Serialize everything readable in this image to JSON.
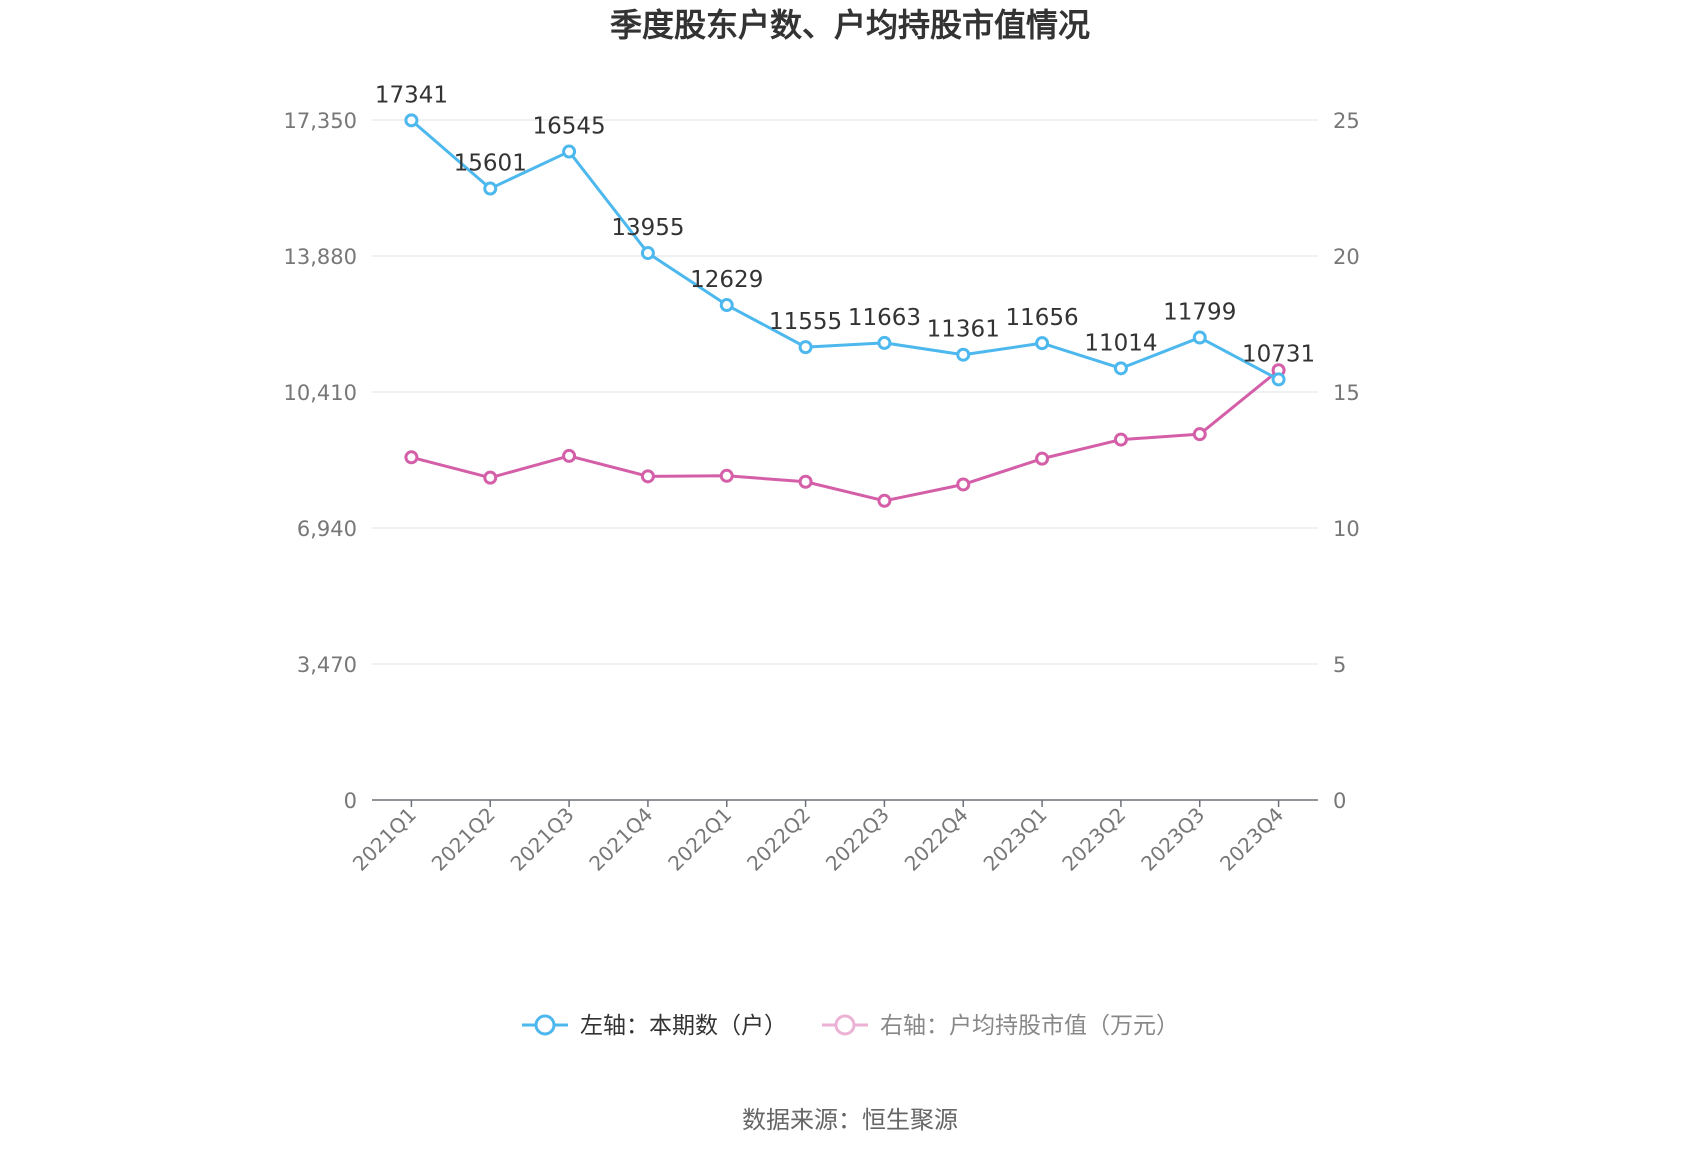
{
  "chart_data": {
    "type": "line",
    "title": "季度股东户数、户均持股市值情况",
    "categories": [
      "2021Q1",
      "2021Q2",
      "2021Q3",
      "2021Q4",
      "2022Q1",
      "2022Q2",
      "2022Q3",
      "2022Q4",
      "2023Q1",
      "2023Q2",
      "2023Q3",
      "2023Q4"
    ],
    "left_axis": {
      "min": 0,
      "max": 17350,
      "ticks": [
        0,
        3470,
        6940,
        10410,
        13880,
        17350
      ],
      "tick_labels": [
        "0",
        "3,470",
        "6,940",
        "10,410",
        "13,880",
        "17,350"
      ]
    },
    "right_axis": {
      "min": 0,
      "max": 25,
      "ticks": [
        0,
        5,
        10,
        15,
        20,
        25
      ],
      "tick_labels": [
        "0",
        "5",
        "10",
        "15",
        "20",
        "25"
      ]
    },
    "series": [
      {
        "name": "左轴：本期数（户）",
        "axis": "left",
        "color": "#4db8ee",
        "values": [
          17341,
          15601,
          16545,
          13955,
          12629,
          11555,
          11663,
          11361,
          11656,
          11014,
          11799,
          10731
        ],
        "labels": [
          "17341",
          "15601",
          "16545",
          "13955",
          "12629",
          "11555",
          "11663",
          "11361",
          "11656",
          "11014",
          "11799",
          "10731"
        ]
      },
      {
        "name": "右轴：户均持股市值（万元）",
        "axis": "right",
        "color": "#d45fa8",
        "values": [
          12.6,
          11.85,
          12.65,
          11.9,
          11.92,
          11.7,
          11.0,
          11.6,
          12.55,
          13.25,
          13.45,
          15.8
        ]
      }
    ],
    "legend_position": "bottom",
    "grid": true
  },
  "source": "数据来源：恒生聚源"
}
